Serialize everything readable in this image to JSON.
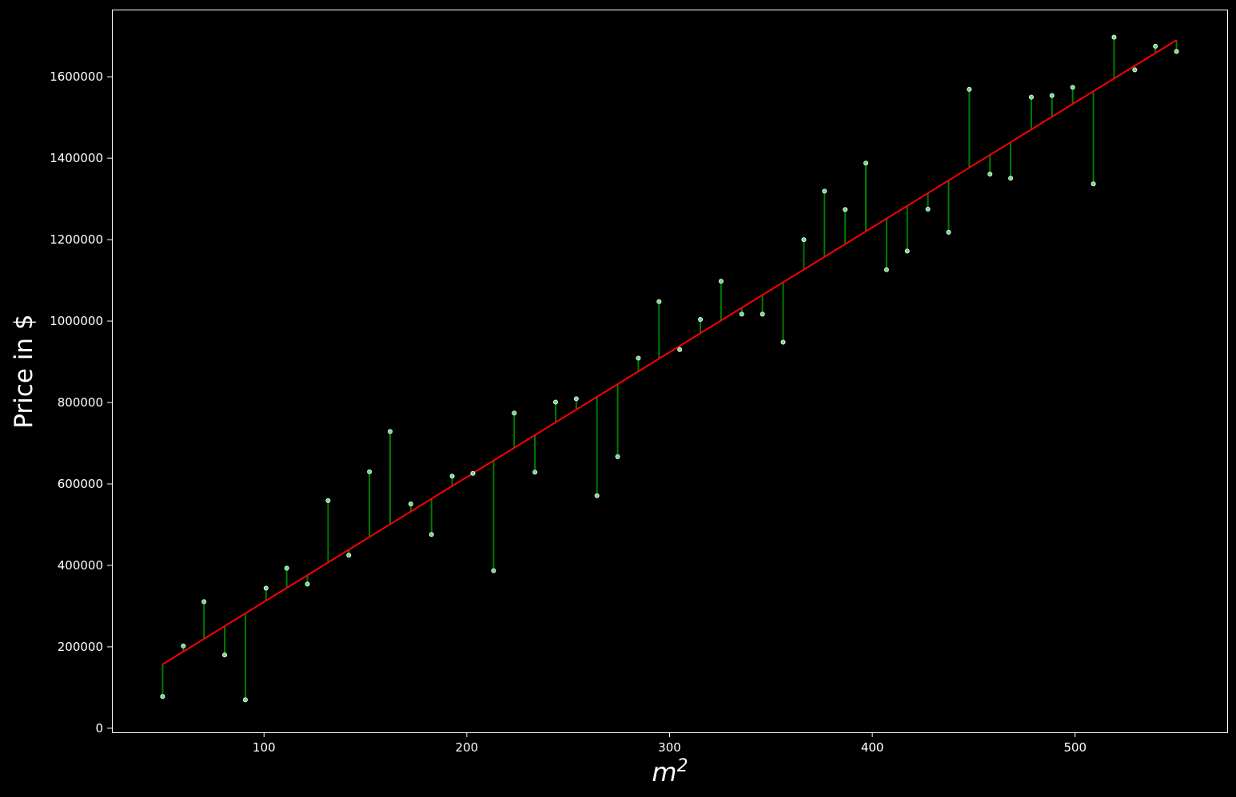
{
  "chart_data": {
    "type": "scatter",
    "xlabel": "m",
    "xlabel_superscript": "2",
    "ylabel": "Price in $",
    "xlim": [
      25,
      575
    ],
    "ylim": [
      -10000,
      1765000
    ],
    "x_ticks": [
      100,
      200,
      300,
      400,
      500
    ],
    "y_ticks": [
      0,
      200000,
      400000,
      600000,
      800000,
      1000000,
      1200000,
      1400000,
      1600000
    ],
    "grid": false,
    "fit_line": {
      "x_start": 50,
      "y_start": 157000,
      "x_end": 550,
      "y_end": 1690000
    },
    "colors": {
      "background": "#000000",
      "axes": "#ffffff",
      "points": "#66dd88",
      "point_edge": "#ffffff",
      "residuals": "#007a00",
      "fit_line": "#ff0000"
    },
    "x": [
      50,
      60.2,
      70.4,
      80.6,
      90.8,
      101,
      111.2,
      121.4,
      131.6,
      141.8,
      152,
      162.2,
      172.4,
      182.6,
      192.8,
      203,
      213.2,
      223.4,
      233.6,
      243.8,
      254,
      264.2,
      274.4,
      284.6,
      294.8,
      305,
      315.2,
      325.4,
      335.6,
      345.8,
      356,
      366.2,
      376.4,
      386.6,
      396.8,
      407,
      417.2,
      427.4,
      437.6,
      447.8,
      458,
      468.2,
      478.4,
      488.6,
      498.8,
      509,
      519.2,
      529.4,
      539.6,
      550
    ],
    "y": [
      78000,
      202000,
      311000,
      180000,
      70000,
      344000,
      393000,
      354000,
      559000,
      425000,
      630000,
      729000,
      551000,
      476000,
      619000,
      626000,
      387000,
      774000,
      629000,
      801000,
      809000,
      571000,
      667000,
      909000,
      1048000,
      930000,
      1004000,
      1098000,
      1017000,
      1017000,
      948000,
      1200000,
      1319000,
      1274000,
      1388000,
      1126000,
      1172000,
      1275000,
      1218000,
      1569000,
      1361000,
      1351000,
      1550000,
      1554000,
      1574000,
      1337000,
      1697000,
      1617000,
      1675000,
      1662000
    ]
  }
}
